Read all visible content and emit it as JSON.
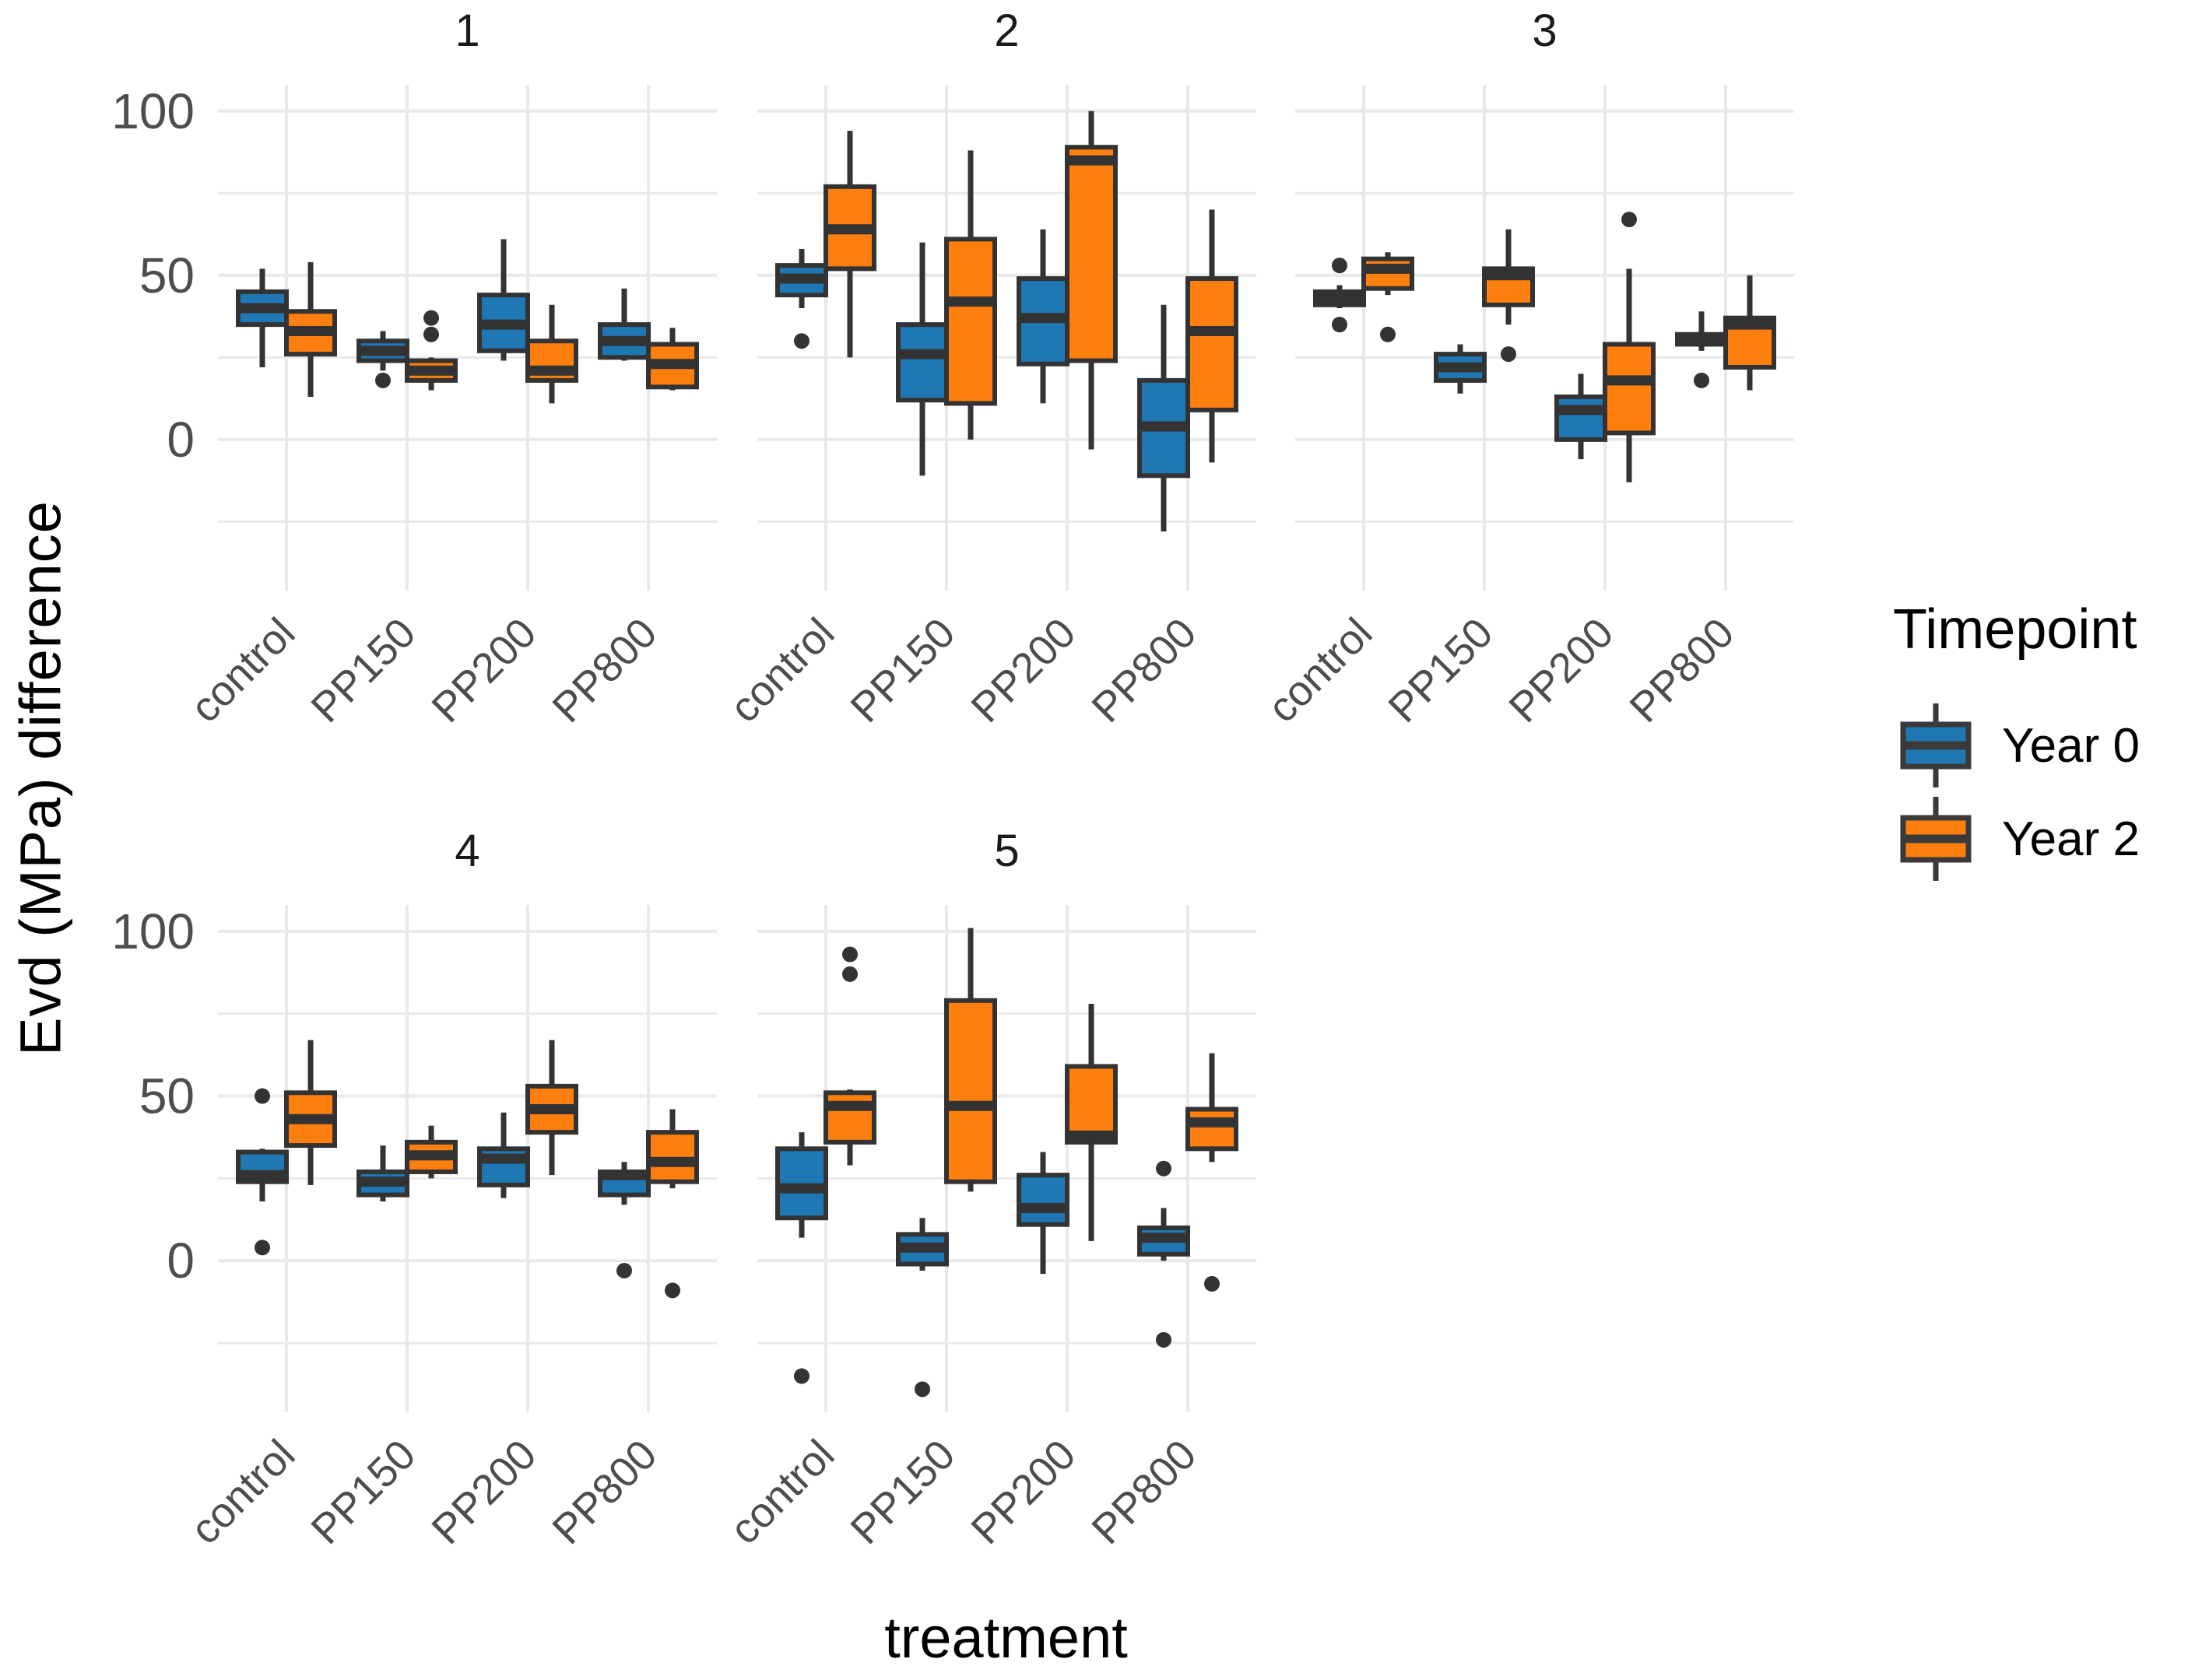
{
  "legend": {
    "title": "Timepoint",
    "entries": [
      {
        "label": "Year 0",
        "color": "#1F77B4"
      },
      {
        "label": "Year 2",
        "color": "#FF7F0E"
      }
    ]
  },
  "chart_data": {
    "type": "boxplot",
    "title": "",
    "xlabel": "treatment",
    "ylabel": "Evd (MPa) difference",
    "categories": [
      "control",
      "PP150",
      "PP200",
      "PP800"
    ],
    "series": [
      {
        "name": "Year 0",
        "color": "#1F77B4"
      },
      {
        "name": "Year 2",
        "color": "#FF7F0E"
      }
    ],
    "ylim": [
      -46,
      108
    ],
    "yticks": [
      0,
      50,
      100
    ],
    "grid_major": [
      0,
      50,
      100
    ],
    "grid_minor": [
      -25,
      25,
      75
    ],
    "legend_position": "right",
    "colors": {
      "box_outline": "#333333",
      "outlier": "#333333",
      "grid": "#E9E9E9",
      "tick_label": "#4D4D4D",
      "strip_label": "#1A1A1A"
    },
    "facets": [
      {
        "label": "1",
        "groups": [
          {
            "category": "control",
            "series": [
              {
                "whislo": 22,
                "q1": 35,
                "med": 40,
                "q3": 45,
                "whishi": 52,
                "outliers": []
              },
              {
                "whislo": 13,
                "q1": 26,
                "med": 33,
                "q3": 39,
                "whishi": 54,
                "outliers": []
              }
            ]
          },
          {
            "category": "PP150",
            "series": [
              {
                "whislo": 21,
                "q1": 24,
                "med": 27,
                "q3": 30,
                "whishi": 33,
                "outliers": [
                  18
                ]
              },
              {
                "whislo": 15,
                "q1": 18,
                "med": 21,
                "q3": 24,
                "whishi": 25,
                "outliers": [
                  32,
                  37
                ]
              }
            ]
          },
          {
            "category": "PP200",
            "series": [
              {
                "whislo": 24,
                "q1": 27,
                "med": 35,
                "q3": 44,
                "whishi": 61,
                "outliers": []
              },
              {
                "whislo": 11,
                "q1": 18,
                "med": 21,
                "q3": 30,
                "whishi": 41,
                "outliers": []
              }
            ]
          },
          {
            "category": "PP800",
            "series": [
              {
                "whislo": 24,
                "q1": 25,
                "med": 30,
                "q3": 35,
                "whishi": 46,
                "outliers": []
              },
              {
                "whislo": 15,
                "q1": 16,
                "med": 23,
                "q3": 29,
                "whishi": 34,
                "outliers": []
              }
            ]
          }
        ]
      },
      {
        "label": "2",
        "groups": [
          {
            "category": "control",
            "series": [
              {
                "whislo": 40,
                "q1": 44,
                "med": 49,
                "q3": 53,
                "whishi": 58,
                "outliers": [
                  30
                ]
              },
              {
                "whislo": 25,
                "q1": 52,
                "med": 64,
                "q3": 77,
                "whishi": 94,
                "outliers": []
              }
            ]
          },
          {
            "category": "PP150",
            "series": [
              {
                "whislo": -11,
                "q1": 12,
                "med": 26,
                "q3": 35,
                "whishi": 60,
                "outliers": []
              },
              {
                "whislo": 0,
                "q1": 11,
                "med": 42,
                "q3": 61,
                "whishi": 88,
                "outliers": []
              }
            ]
          },
          {
            "category": "PP200",
            "series": [
              {
                "whislo": 11,
                "q1": 23,
                "med": 37,
                "q3": 49,
                "whishi": 64,
                "outliers": []
              },
              {
                "whislo": -3,
                "q1": 24,
                "med": 85,
                "q3": 89,
                "whishi": 100,
                "outliers": []
              }
            ]
          },
          {
            "category": "PP800",
            "series": [
              {
                "whislo": -28,
                "q1": -11,
                "med": 4,
                "q3": 18,
                "whishi": 41,
                "outliers": []
              },
              {
                "whislo": -7,
                "q1": 9,
                "med": 33,
                "q3": 49,
                "whishi": 70,
                "outliers": []
              }
            ]
          }
        ]
      },
      {
        "label": "3",
        "groups": [
          {
            "category": "control",
            "series": [
              {
                "whislo": 40,
                "q1": 41,
                "med": 43,
                "q3": 45,
                "whishi": 47,
                "outliers": [
                  53,
                  35
                ]
              },
              {
                "whislo": 44,
                "q1": 46,
                "med": 52,
                "q3": 55,
                "whishi": 57,
                "outliers": [
                  32
                ]
              }
            ]
          },
          {
            "category": "PP150",
            "series": [
              {
                "whislo": 14,
                "q1": 18,
                "med": 22,
                "q3": 26,
                "whishi": 29,
                "outliers": []
              },
              {
                "whislo": 35,
                "q1": 41,
                "med": 50,
                "q3": 52,
                "whishi": 64,
                "outliers": [
                  26
                ]
              }
            ]
          },
          {
            "category": "PP200",
            "series": [
              {
                "whislo": -6,
                "q1": 0,
                "med": 9,
                "q3": 13,
                "whishi": 20,
                "outliers": []
              },
              {
                "whislo": -13,
                "q1": 2,
                "med": 18,
                "q3": 29,
                "whishi": 52,
                "outliers": [
                  67
                ]
              }
            ]
          },
          {
            "category": "PP800",
            "series": [
              {
                "whislo": 27,
                "q1": 29,
                "med": 31,
                "q3": 32,
                "whishi": 39,
                "outliers": [
                  18
                ]
              },
              {
                "whislo": 15,
                "q1": 22,
                "med": 35,
                "q3": 37,
                "whishi": 50,
                "outliers": []
              }
            ]
          }
        ]
      },
      {
        "label": "4",
        "groups": [
          {
            "category": "control",
            "series": [
              {
                "whislo": 18,
                "q1": 24,
                "med": 26,
                "q3": 33,
                "whishi": 34,
                "outliers": [
                  50,
                  4
                ]
              },
              {
                "whislo": 23,
                "q1": 35,
                "med": 43,
                "q3": 51,
                "whishi": 67,
                "outliers": []
              }
            ]
          },
          {
            "category": "PP150",
            "series": [
              {
                "whislo": 18,
                "q1": 20,
                "med": 24,
                "q3": 27,
                "whishi": 35,
                "outliers": []
              },
              {
                "whislo": 25,
                "q1": 27,
                "med": 32,
                "q3": 36,
                "whishi": 41,
                "outliers": []
              }
            ]
          },
          {
            "category": "PP200",
            "series": [
              {
                "whislo": 19,
                "q1": 23,
                "med": 31,
                "q3": 34,
                "whishi": 45,
                "outliers": []
              },
              {
                "whislo": 26,
                "q1": 39,
                "med": 46,
                "q3": 53,
                "whishi": 67,
                "outliers": []
              }
            ]
          },
          {
            "category": "PP800",
            "series": [
              {
                "whislo": 17,
                "q1": 20,
                "med": 26,
                "q3": 27,
                "whishi": 30,
                "outliers": [
                  -3
                ]
              },
              {
                "whislo": 22,
                "q1": 24,
                "med": 30,
                "q3": 39,
                "whishi": 46,
                "outliers": [
                  -9
                ]
              }
            ]
          }
        ]
      },
      {
        "label": "5",
        "groups": [
          {
            "category": "control",
            "series": [
              {
                "whislo": 7,
                "q1": 13,
                "med": 22,
                "q3": 34,
                "whishi": 39,
                "outliers": [
                  -35
                ]
              },
              {
                "whislo": 29,
                "q1": 36,
                "med": 47,
                "q3": 51,
                "whishi": 52,
                "outliers": [
                  93,
                  87
                ]
              }
            ]
          },
          {
            "category": "PP150",
            "series": [
              {
                "whislo": -3,
                "q1": -1,
                "med": 4,
                "q3": 8,
                "whishi": 13,
                "outliers": [
                  -39
                ]
              },
              {
                "whislo": 21,
                "q1": 24,
                "med": 47,
                "q3": 79,
                "whishi": 101,
                "outliers": []
              }
            ]
          },
          {
            "category": "PP200",
            "series": [
              {
                "whislo": -4,
                "q1": 11,
                "med": 16,
                "q3": 26,
                "whishi": 33,
                "outliers": []
              },
              {
                "whislo": 6,
                "q1": 36,
                "med": 38,
                "q3": 59,
                "whishi": 78,
                "outliers": []
              }
            ]
          },
          {
            "category": "PP800",
            "series": [
              {
                "whislo": 0,
                "q1": 2,
                "med": 7,
                "q3": 10,
                "whishi": 16,
                "outliers": [
                  28,
                  -24
                ]
              },
              {
                "whislo": 30,
                "q1": 34,
                "med": 42,
                "q3": 46,
                "whishi": 63,
                "outliers": [
                  -7
                ]
              }
            ]
          }
        ]
      }
    ]
  }
}
